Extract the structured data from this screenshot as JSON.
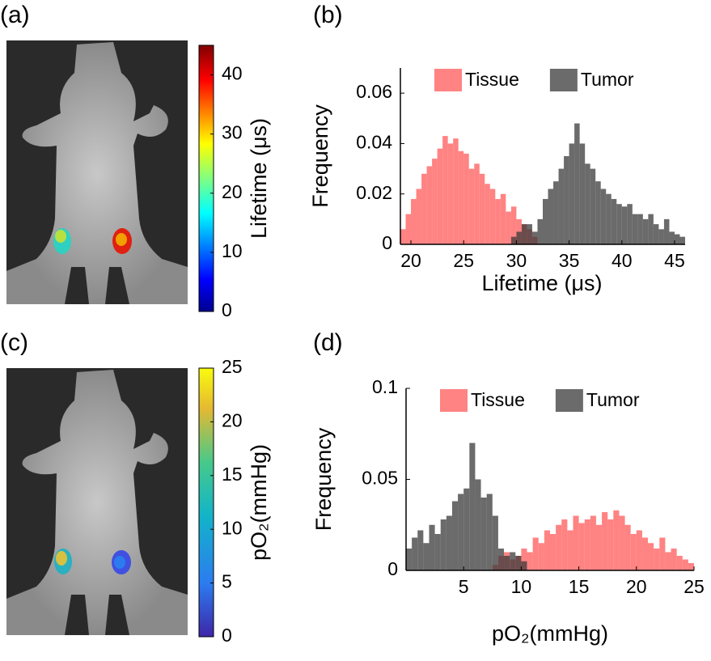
{
  "panel_labels": [
    "(a)",
    "(b)",
    "(c)",
    "(d)"
  ],
  "colorbars": [
    {
      "label": "Lifetime (μs)",
      "lim": [
        0,
        45
      ],
      "ticks": [
        0,
        10,
        20,
        30,
        40
      ],
      "colormap": "jet"
    },
    {
      "label": "pO₂(mmHg)",
      "lim": [
        0,
        25
      ],
      "ticks": [
        0,
        5,
        10,
        15,
        20,
        25
      ],
      "colormap": "parula"
    }
  ],
  "chart_data": [
    {
      "type": "histogram",
      "xlabel": "Lifetime (μs)",
      "ylabel": "Frequency",
      "legend": "top",
      "bins": [
        19,
        19.5,
        20,
        20.5,
        21,
        21.5,
        22,
        22.5,
        23,
        23.5,
        24,
        24.5,
        25,
        25.5,
        26,
        26.5,
        27,
        27.5,
        28,
        28.5,
        29,
        29.5,
        30,
        30.5,
        31,
        31.5,
        32,
        32.5,
        33,
        33.5,
        34,
        34.5,
        35,
        35.5,
        36,
        36.5,
        37,
        37.5,
        38,
        38.5,
        39,
        39.5,
        40,
        40.5,
        41,
        41.5,
        42,
        42.5,
        43,
        43.5,
        44,
        44.5,
        45,
        45.5,
        46
      ],
      "series": [
        {
          "name": "Tissue",
          "color": "#ff5a5a",
          "values": [
            0.006,
            0.012,
            0.018,
            0.022,
            0.028,
            0.031,
            0.034,
            0.038,
            0.043,
            0.04,
            0.042,
            0.037,
            0.036,
            0.03,
            0.032,
            0.028,
            0.024,
            0.022,
            0.018,
            0.02,
            0.013,
            0.015,
            0.01,
            0.008,
            0.006,
            0.003,
            0,
            0,
            0,
            0,
            0,
            0,
            0,
            0,
            0,
            0,
            0,
            0,
            0,
            0,
            0,
            0,
            0,
            0,
            0,
            0,
            0,
            0,
            0,
            0,
            0,
            0,
            0,
            0
          ]
        },
        {
          "name": "Tumor",
          "color": "#3a3a3a",
          "values": [
            0,
            0,
            0,
            0,
            0,
            0,
            0,
            0,
            0,
            0,
            0,
            0,
            0,
            0,
            0,
            0,
            0,
            0,
            0,
            0,
            0,
            0.003,
            0.005,
            0.008,
            0.008,
            0.005,
            0.01,
            0.018,
            0.022,
            0.025,
            0.03,
            0.035,
            0.04,
            0.048,
            0.04,
            0.032,
            0.03,
            0.025,
            0.022,
            0.02,
            0.018,
            0.016,
            0.015,
            0.016,
            0.012,
            0.012,
            0.01,
            0.012,
            0.008,
            0.006,
            0.01,
            0.005,
            0.004,
            0.003
          ]
        }
      ],
      "xlim": [
        19,
        46
      ],
      "xticks": [
        20,
        25,
        30,
        35,
        40,
        45
      ],
      "ylim": [
        0,
        0.07
      ],
      "yticks": [
        0,
        0.02,
        0.04,
        0.06
      ]
    },
    {
      "type": "histogram",
      "xlabel": "pO₂(mmHg)",
      "ylabel": "Frequency",
      "legend": "top",
      "bins": [
        0,
        0.5,
        1,
        1.5,
        2,
        2.5,
        3,
        3.5,
        4,
        4.5,
        5,
        5.5,
        6,
        6.5,
        7,
        7.5,
        8,
        8.5,
        9,
        9.5,
        10,
        10.5,
        11,
        11.5,
        12,
        12.5,
        13,
        13.5,
        14,
        14.5,
        15,
        15.5,
        16,
        16.5,
        17,
        17.5,
        18,
        18.5,
        19,
        19.5,
        20,
        20.5,
        21,
        21.5,
        22,
        22.5,
        23,
        23.5,
        24,
        24.5,
        25
      ],
      "series": [
        {
          "name": "Tissue",
          "color": "#ff5a5a",
          "values": [
            0,
            0,
            0,
            0,
            0,
            0,
            0,
            0,
            0,
            0,
            0,
            0,
            0,
            0,
            0,
            0.003,
            0.008,
            0.01,
            0.006,
            0.008,
            0.012,
            0.01,
            0.018,
            0.015,
            0.022,
            0.02,
            0.025,
            0.028,
            0.022,
            0.03,
            0.026,
            0.028,
            0.03,
            0.025,
            0.032,
            0.028,
            0.033,
            0.03,
            0.025,
            0.02,
            0.022,
            0.018,
            0.015,
            0.012,
            0.018,
            0.01,
            0.012,
            0.008,
            0.006,
            0.004
          ]
        },
        {
          "name": "Tumor",
          "color": "#3a3a3a",
          "values": [
            0.012,
            0.018,
            0.022,
            0.015,
            0.025,
            0.02,
            0.028,
            0.03,
            0.038,
            0.042,
            0.045,
            0.07,
            0.05,
            0.04,
            0.042,
            0.03,
            0.012,
            0.008,
            0.01,
            0.008,
            0.005,
            0,
            0,
            0,
            0,
            0,
            0,
            0,
            0,
            0,
            0,
            0,
            0,
            0,
            0,
            0,
            0,
            0,
            0,
            0,
            0,
            0,
            0,
            0,
            0,
            0,
            0,
            0,
            0,
            0
          ]
        }
      ],
      "xlim": [
        0,
        25
      ],
      "xticks": [
        5,
        10,
        15,
        20,
        25
      ],
      "ylim": [
        0,
        0.1
      ],
      "yticks": [
        0,
        0.05,
        0.1
      ]
    }
  ]
}
